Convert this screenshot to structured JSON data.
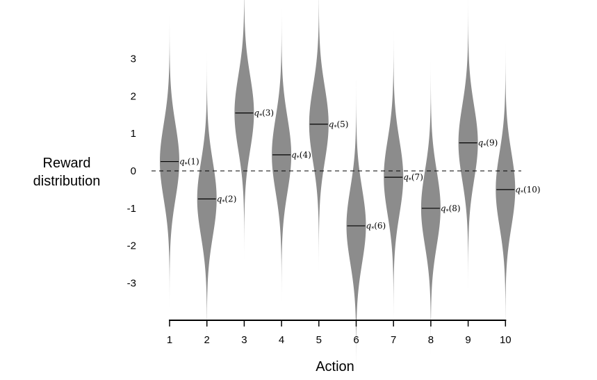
{
  "chart_data": {
    "type": "violin",
    "ylabel_lines": [
      "Reward",
      "distribution"
    ],
    "xlabel": "Action",
    "categories": [
      "1",
      "2",
      "3",
      "4",
      "5",
      "6",
      "7",
      "8",
      "9",
      "10"
    ],
    "y_ticks": [
      "3",
      "2",
      "1",
      "0",
      "-1",
      "-2",
      "-3"
    ],
    "ylim": [
      -4,
      4
    ],
    "means": [
      0.25,
      -0.75,
      1.55,
      0.43,
      1.25,
      -1.47,
      -0.17,
      -1.0,
      0.75,
      -0.5
    ],
    "mean_labels": [
      "q*(1)",
      "q*(2)",
      "q*(3)",
      "q*(4)",
      "q*(5)",
      "q*(6)",
      "q*(7)",
      "q*(8)",
      "q*(9)",
      "q*(10)"
    ],
    "std_dev": 1,
    "zero_reference_line": "dashed",
    "fill_color": "#8c8c8c"
  }
}
